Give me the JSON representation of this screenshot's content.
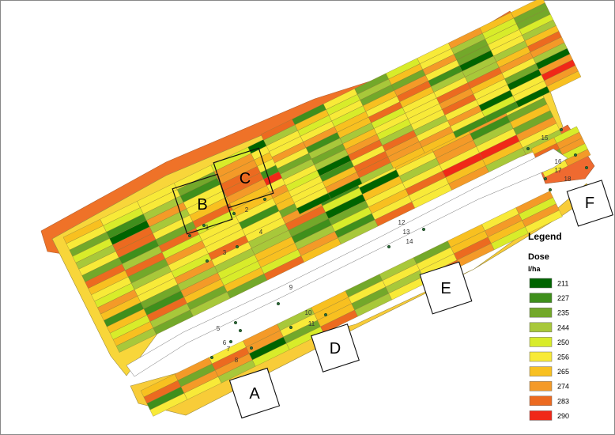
{
  "legend": {
    "title": "Legend",
    "subtitle": "Dose",
    "unit": "l/ha",
    "classes": [
      {
        "label": "211",
        "color": "#006400"
      },
      {
        "label": "227",
        "color": "#3f8f1c"
      },
      {
        "label": "235",
        "color": "#73a82a"
      },
      {
        "label": "244",
        "color": "#a8c83a"
      },
      {
        "label": "250",
        "color": "#d8ec2a"
      },
      {
        "label": "256",
        "color": "#f8ea38"
      },
      {
        "label": "265",
        "color": "#f8c020"
      },
      {
        "label": "274",
        "color": "#f49a28"
      },
      {
        "label": "283",
        "color": "#ec6a20"
      },
      {
        "label": "290",
        "color": "#f02818"
      }
    ]
  },
  "zones": [
    "A",
    "B",
    "C",
    "D",
    "E",
    "F"
  ],
  "sample_points": [
    "1",
    "2",
    "3",
    "4",
    "5",
    "6",
    "7",
    "8",
    "9",
    "10",
    "11",
    "12",
    "13",
    "14",
    "15",
    "16",
    "17",
    "18"
  ]
}
